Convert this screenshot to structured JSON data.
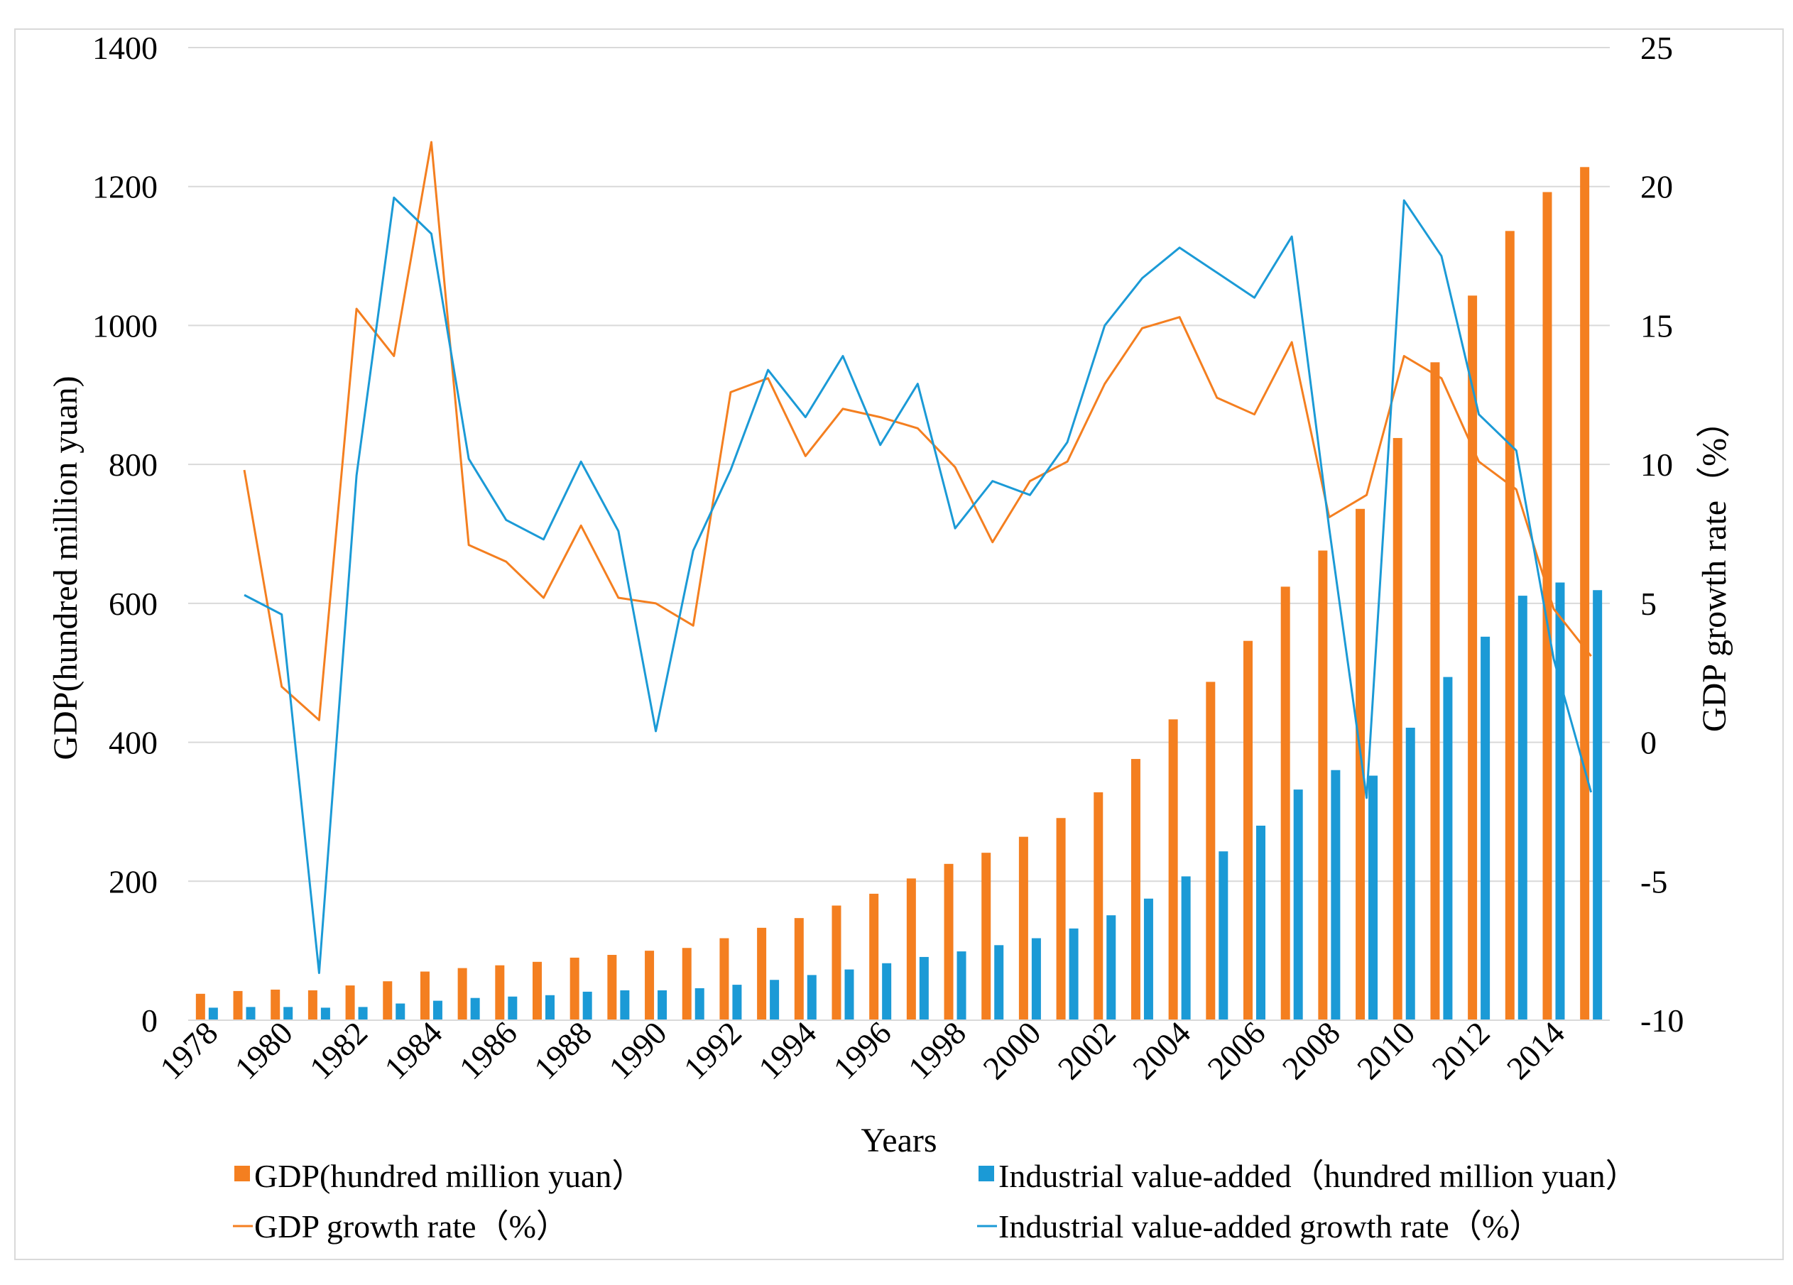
{
  "chart_data": {
    "type": "bar+line",
    "title": "",
    "xlabel": "Years",
    "ylabel_left": "GDP(hundred million yuan)",
    "ylabel_right": "GDP growth rate（%）",
    "ylim_left": [
      0,
      1400
    ],
    "ylim_right": [
      -10,
      25
    ],
    "yticks_left": [
      "0",
      "200",
      "400",
      "600",
      "800",
      "1000",
      "1200",
      "1400"
    ],
    "yticks_right": [
      "-10",
      "-5",
      "0",
      "5",
      "10",
      "15",
      "20",
      "25"
    ],
    "xtick_labels": [
      "1978",
      "1980",
      "1982",
      "1984",
      "1986",
      "1988",
      "1990",
      "1992",
      "1994",
      "1996",
      "1998",
      "2000",
      "2002",
      "2004",
      "2006",
      "2008",
      "2010",
      "2012",
      "2014"
    ],
    "categories": [
      1978,
      1979,
      1980,
      1981,
      1982,
      1983,
      1984,
      1985,
      1986,
      1987,
      1988,
      1989,
      1990,
      1991,
      1992,
      1993,
      1994,
      1995,
      1996,
      1997,
      1998,
      1999,
      2000,
      2001,
      2002,
      2003,
      2004,
      2005,
      2006,
      2007,
      2008,
      2009,
      2010,
      2011,
      2012,
      2013,
      2014,
      2015
    ],
    "grid": true,
    "legend_position": "bottom",
    "series": [
      {
        "name": "GDP(hundred million yuan）",
        "kind": "bar",
        "axis": "left",
        "color": "#F47F20",
        "values": [
          38,
          42,
          44,
          43,
          50,
          56,
          70,
          75,
          79,
          84,
          90,
          94,
          100,
          104,
          118,
          133,
          147,
          165,
          182,
          204,
          225,
          241,
          264,
          291,
          328,
          376,
          433,
          487,
          546,
          624,
          676,
          736,
          838,
          947,
          1043,
          1136,
          1192,
          1228
        ]
      },
      {
        "name": "Industrial value-added（hundred million yuan）",
        "kind": "bar",
        "axis": "left",
        "color": "#1B9AD6",
        "values": [
          18,
          19,
          19,
          18,
          19,
          24,
          28,
          32,
          34,
          36,
          41,
          43,
          43,
          46,
          51,
          58,
          65,
          73,
          82,
          91,
          99,
          108,
          118,
          132,
          151,
          175,
          207,
          243,
          280,
          332,
          360,
          352,
          421,
          494,
          552,
          611,
          630,
          619
        ]
      },
      {
        "name": "GDP growth rate（%）",
        "kind": "line",
        "axis": "right",
        "color": "#F47F20",
        "values": [
          null,
          9.8,
          2.0,
          0.8,
          15.6,
          13.9,
          21.6,
          7.1,
          6.5,
          5.2,
          7.8,
          5.2,
          5.0,
          4.2,
          12.6,
          13.1,
          10.3,
          12.0,
          11.7,
          11.3,
          9.9,
          7.2,
          9.4,
          10.1,
          12.9,
          14.9,
          15.3,
          12.4,
          11.8,
          14.4,
          8.1,
          8.9,
          13.9,
          13.1,
          10.1,
          9.1,
          4.8,
          3.1
        ]
      },
      {
        "name": "Industrial value-added growth rate（%）",
        "kind": "line",
        "axis": "right",
        "color": "#1B9AD6",
        "values": [
          null,
          5.3,
          4.6,
          -8.3,
          9.6,
          19.6,
          18.3,
          10.2,
          8.0,
          7.3,
          10.1,
          7.6,
          0.4,
          6.9,
          9.8,
          13.4,
          11.7,
          13.9,
          10.7,
          12.9,
          7.7,
          9.4,
          8.9,
          10.8,
          15.0,
          16.7,
          17.8,
          16.9,
          16.0,
          18.2,
          7.7,
          -2.0,
          19.5,
          17.5,
          11.8,
          10.5,
          3.0,
          -1.8
        ]
      }
    ]
  }
}
